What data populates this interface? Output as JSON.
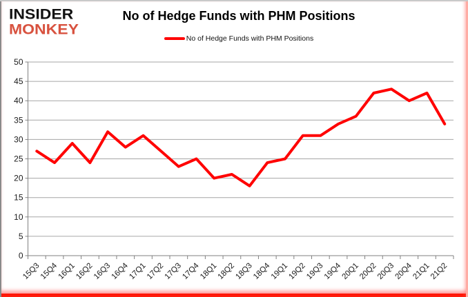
{
  "logo": {
    "line1": "INSIDER",
    "line2": "MONKEY"
  },
  "header": {
    "title": "No of Hedge Funds with PHM Positions"
  },
  "legend": {
    "label": "No of Hedge Funds with PHM Positions"
  },
  "colors": {
    "line": "#ff0000",
    "grid": "#a6a6a6",
    "axis": "#808080",
    "tick_label": "#1a1a1a",
    "title": "#000000",
    "logo_monkey": "#d8523f",
    "frame_bottom": "#ff1505",
    "frame_right": "#ffaca4"
  },
  "chart_data": {
    "type": "line",
    "title": "No of Hedge Funds with PHM Positions",
    "categories": [
      "15Q3",
      "15Q4",
      "16Q1",
      "16Q2",
      "16Q3",
      "16Q4",
      "17Q1",
      "17Q2",
      "17Q3",
      "17Q4",
      "18Q1",
      "18Q2",
      "18Q3",
      "18Q4",
      "19Q1",
      "19Q2",
      "19Q3",
      "19Q4",
      "20Q1",
      "20Q2",
      "20Q3",
      "20Q4",
      "21Q1",
      "21Q2"
    ],
    "series": [
      {
        "name": "No of Hedge Funds with PHM Positions",
        "color": "#ff0000",
        "values": [
          27,
          24,
          29,
          24,
          32,
          28,
          31,
          27,
          23,
          25,
          20,
          21,
          18,
          24,
          25,
          31,
          31,
          34,
          36,
          42,
          43,
          40,
          42,
          34
        ]
      }
    ],
    "xlabel": "",
    "ylabel": "",
    "ylim": [
      0,
      50
    ],
    "ytick_step": 5,
    "yticks": [
      0,
      5,
      10,
      15,
      20,
      25,
      30,
      35,
      40,
      45,
      50
    ],
    "grid": "horizontal",
    "legend_position": "top-center",
    "x_label_rotation": -45
  }
}
